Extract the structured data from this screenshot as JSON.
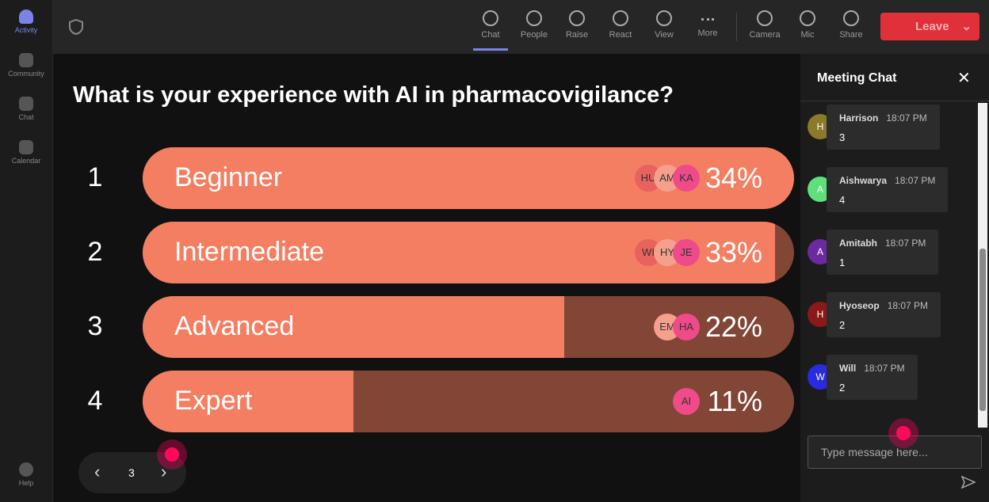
{
  "sidebar": {
    "items": [
      "Activity",
      "Community",
      "Chat",
      "Calendar"
    ],
    "help": "Help"
  },
  "toolbar": {
    "items": [
      "Chat",
      "People",
      "Raise",
      "React",
      "View",
      "More",
      "Camera",
      "Mic",
      "Share"
    ],
    "leave": "Leave"
  },
  "poll": {
    "question": "What is your experience with AI in pharmacovigilance?",
    "numbers": [
      "1",
      "2",
      "3",
      "4"
    ],
    "options": [
      "Beginner",
      "Intermediate",
      "Advanced",
      "Expert"
    ],
    "avatars": [
      [
        "HU",
        "AM",
        "KA"
      ],
      [
        "WI",
        "HY",
        "JE"
      ],
      [
        "EM",
        "HA"
      ],
      [
        "AI"
      ]
    ],
    "values": [
      34,
      33,
      22,
      11
    ],
    "value_labels": [
      "34%",
      "33%",
      "22%",
      "11%"
    ]
  },
  "pager": {
    "page": "3"
  },
  "chat": {
    "title": "Meeting Chat",
    "messages": [
      {
        "initial": "H",
        "name": "Harrison",
        "time": "18:07 PM",
        "text": "3",
        "color": "#8a7a2a"
      },
      {
        "initial": "A",
        "name": "Aishwarya",
        "time": "18:07 PM",
        "text": "4",
        "color": "#5fe07a"
      },
      {
        "initial": "A",
        "name": "Amitabh",
        "time": "18:07 PM",
        "text": "1",
        "color": "#6b2aa0"
      },
      {
        "initial": "H",
        "name": "Hyoseop",
        "time": "18:07 PM",
        "text": "2",
        "color": "#8a1a1a"
      },
      {
        "initial": "W",
        "name": "Will",
        "time": "18:07 PM",
        "text": "2",
        "color": "#2a2ae0"
      }
    ],
    "placeholder": "Type message here..."
  }
}
